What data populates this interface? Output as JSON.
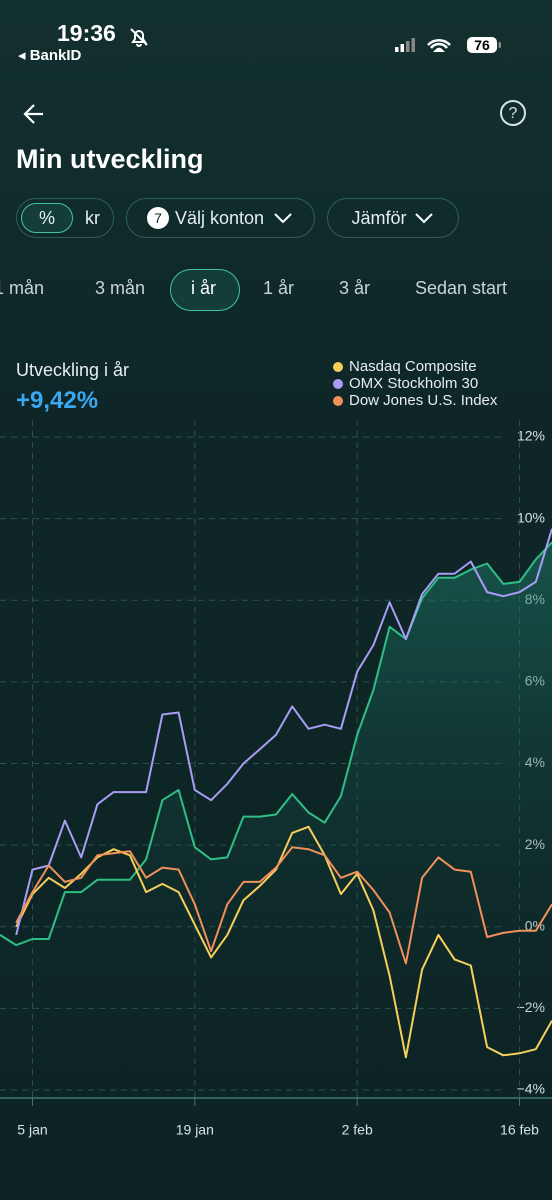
{
  "status_bar": {
    "time": "19:36",
    "back_app": "BankID",
    "battery": "76"
  },
  "header": {
    "title": "Min utveckling"
  },
  "filters": {
    "unit_options": [
      "%",
      "kr"
    ],
    "accounts_count": "7",
    "accounts": "Välj konton",
    "compare": "Jämför"
  },
  "periods": [
    "1 mån",
    "3 mån",
    "i år",
    "1 år",
    "3 år",
    "Sedan start"
  ],
  "summary": {
    "label": "Utveckling i år",
    "value": "+9,42%"
  },
  "chart_data": {
    "type": "line",
    "categories": [
      null,
      null,
      "5 jan",
      null,
      null,
      null,
      null,
      null,
      null,
      null,
      null,
      null,
      "19 jan",
      null,
      null,
      null,
      null,
      null,
      null,
      null,
      null,
      null,
      "2 feb",
      null,
      null,
      null,
      null,
      null,
      null,
      null,
      null,
      null,
      "16 feb",
      null,
      null
    ],
    "series": [
      {
        "color": "#2fbf85",
        "values": [
          -0.2,
          -0.45,
          -0.3,
          -0.3,
          0.85,
          0.85,
          1.15,
          1.15,
          1.15,
          1.65,
          3.1,
          3.35,
          1.95,
          1.65,
          1.7,
          2.7,
          2.7,
          2.75,
          3.25,
          2.8,
          2.55,
          3.2,
          4.7,
          5.8,
          7.35,
          7.05,
          8.05,
          8.55,
          8.55,
          8.75,
          8.9,
          8.4,
          8.45,
          9.0,
          9.42
        ]
      },
      {
        "name": "Nasdaq Composite",
        "color": "#f5cf5a",
        "values": [
          null,
          0.0,
          0.8,
          1.2,
          0.95,
          1.3,
          1.7,
          1.9,
          1.75,
          0.85,
          1.05,
          0.85,
          0.05,
          -0.75,
          -0.2,
          0.65,
          1.0,
          1.4,
          2.3,
          2.45,
          1.75,
          0.8,
          1.3,
          0.4,
          -1.2,
          -3.2,
          -1.05,
          -0.2,
          -0.8,
          -0.95,
          -2.95,
          -3.15,
          -3.1,
          -3.0,
          -2.3
        ]
      },
      {
        "name": "OMX Stockholm 30",
        "color": "#a99cf5",
        "values": [
          null,
          -0.2,
          1.4,
          1.5,
          2.6,
          1.7,
          3.0,
          3.3,
          3.3,
          3.3,
          5.2,
          5.25,
          3.35,
          3.1,
          3.5,
          4.0,
          4.35,
          4.7,
          5.4,
          4.85,
          4.95,
          4.85,
          6.25,
          6.9,
          7.95,
          7.05,
          8.15,
          8.65,
          8.65,
          8.95,
          8.2,
          8.1,
          8.2,
          8.45,
          9.75
        ]
      },
      {
        "name": "Dow Jones U.S. Index",
        "color": "#f0905a",
        "values": [
          null,
          0.1,
          0.85,
          1.5,
          1.1,
          1.2,
          1.75,
          1.8,
          1.85,
          1.2,
          1.45,
          1.4,
          0.55,
          -0.6,
          0.55,
          1.1,
          1.1,
          1.45,
          1.95,
          1.9,
          1.75,
          1.2,
          1.35,
          0.9,
          0.35,
          -0.9,
          1.2,
          1.7,
          1.4,
          1.35,
          -0.25,
          -0.15,
          -0.1,
          -0.1,
          0.55
        ]
      }
    ],
    "ylim": [
      -4,
      12
    ],
    "yticks": [
      {
        "value": -4,
        "label": "−4%"
      },
      {
        "value": -2,
        "label": "−2%"
      },
      {
        "value": 0,
        "label": "0%"
      },
      {
        "value": 2,
        "label": "2%"
      },
      {
        "value": 4,
        "label": "4%"
      },
      {
        "value": 6,
        "label": "6%"
      },
      {
        "value": 8,
        "label": "8%"
      },
      {
        "value": 10,
        "label": "10%"
      },
      {
        "value": 12,
        "label": "12%"
      }
    ],
    "grid": true
  }
}
